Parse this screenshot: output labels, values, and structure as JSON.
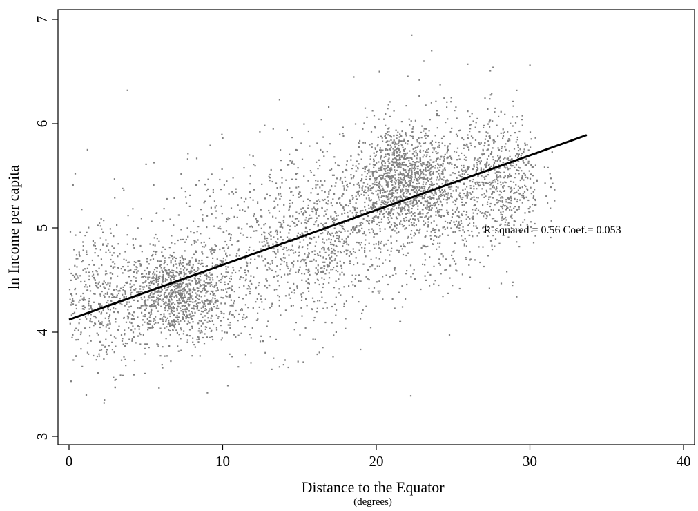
{
  "chart_data": {
    "type": "scatter",
    "xlabel": "Distance to the Equator",
    "xlabel_sub": "(degrees)",
    "ylabel": "ln Income per capita",
    "xlim": [
      0,
      40
    ],
    "ylim": [
      3,
      7
    ],
    "xticks": [
      "0",
      "10",
      "20",
      "30",
      "40"
    ],
    "yticks": [
      "3",
      "4",
      "5",
      "6",
      "7"
    ],
    "grid": false,
    "legend": "none",
    "point_color": "#808080",
    "line_color": "#000000",
    "fit_line": {
      "x": [
        0,
        33.7
      ],
      "y": [
        4.12,
        5.89
      ]
    },
    "annotation": "R-squared = 0.56 Coef.= 0.053",
    "annotation_position": {
      "x": 27.0,
      "y": 4.98
    },
    "clusters": [
      {
        "cx": 7.0,
        "cy": 4.35,
        "sx": 2.0,
        "sy": 0.22,
        "n": 1100
      },
      {
        "cx": 21.5,
        "cy": 5.45,
        "sx": 1.5,
        "sy": 0.28,
        "n": 1200
      },
      {
        "cx": 28.0,
        "cy": 5.45,
        "sx": 1.4,
        "sy": 0.32,
        "n": 650
      },
      {
        "cx": 12.0,
        "cy": 4.75,
        "sx": 4.0,
        "sy": 0.45,
        "n": 700
      },
      {
        "cx": 2.0,
        "cy": 4.35,
        "sx": 1.4,
        "sy": 0.35,
        "n": 380
      },
      {
        "cx": 17.0,
        "cy": 4.95,
        "sx": 2.5,
        "sy": 0.35,
        "n": 650
      },
      {
        "cx": 24.5,
        "cy": 5.25,
        "sx": 1.2,
        "sy": 0.4,
        "n": 380
      }
    ],
    "outliers": [
      [
        2.3,
        3.35
      ],
      [
        3.0,
        3.47
      ],
      [
        9.0,
        3.42
      ],
      [
        3.8,
        6.32
      ],
      [
        22.3,
        6.85
      ],
      [
        23.1,
        6.6
      ],
      [
        23.6,
        6.7
      ],
      [
        30.0,
        6.56
      ],
      [
        27.6,
        6.54
      ],
      [
        20.2,
        6.5
      ],
      [
        22.8,
        6.42
      ],
      [
        13.7,
        6.23
      ],
      [
        16.9,
        6.16
      ],
      [
        1.2,
        5.75
      ],
      [
        0.4,
        5.52
      ]
    ]
  }
}
